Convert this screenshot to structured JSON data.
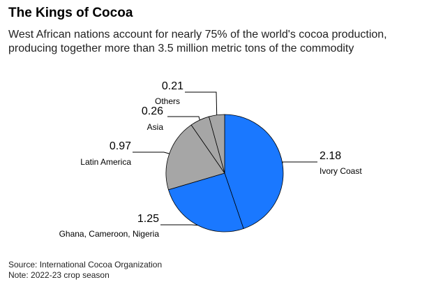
{
  "header": {
    "title": "The Kings of Cocoa",
    "subtitle": "West African nations account for nearly 75% of the world's cocoa production, producing together more than 3.5 million metric tons of the commodity"
  },
  "footer": {
    "source": "Source: International Cocoa Organization",
    "note": "Note: 2022-23 crop season"
  },
  "chart_data": {
    "type": "pie",
    "title": "The Kings of Cocoa",
    "start": "12 o'clock, clockwise",
    "slices": [
      {
        "label": "Ivory Coast",
        "value": 2.18,
        "value_text": "2.18",
        "color": "#1a78ff",
        "label_side": "right"
      },
      {
        "label": "Ghana, Cameroon, Nigeria",
        "value": 1.25,
        "value_text": "1.25",
        "color": "#1a78ff",
        "label_side": "left"
      },
      {
        "label": "Latin America",
        "value": 0.97,
        "value_text": "0.97",
        "color": "#a6a6a6",
        "label_side": "left"
      },
      {
        "label": "Asia",
        "value": 0.26,
        "value_text": "0.26",
        "color": "#a6a6a6",
        "label_side": "left"
      },
      {
        "label": "Others",
        "value": 0.21,
        "value_text": "0.21",
        "color": "#a6a6a6",
        "label_side": "left"
      }
    ]
  }
}
